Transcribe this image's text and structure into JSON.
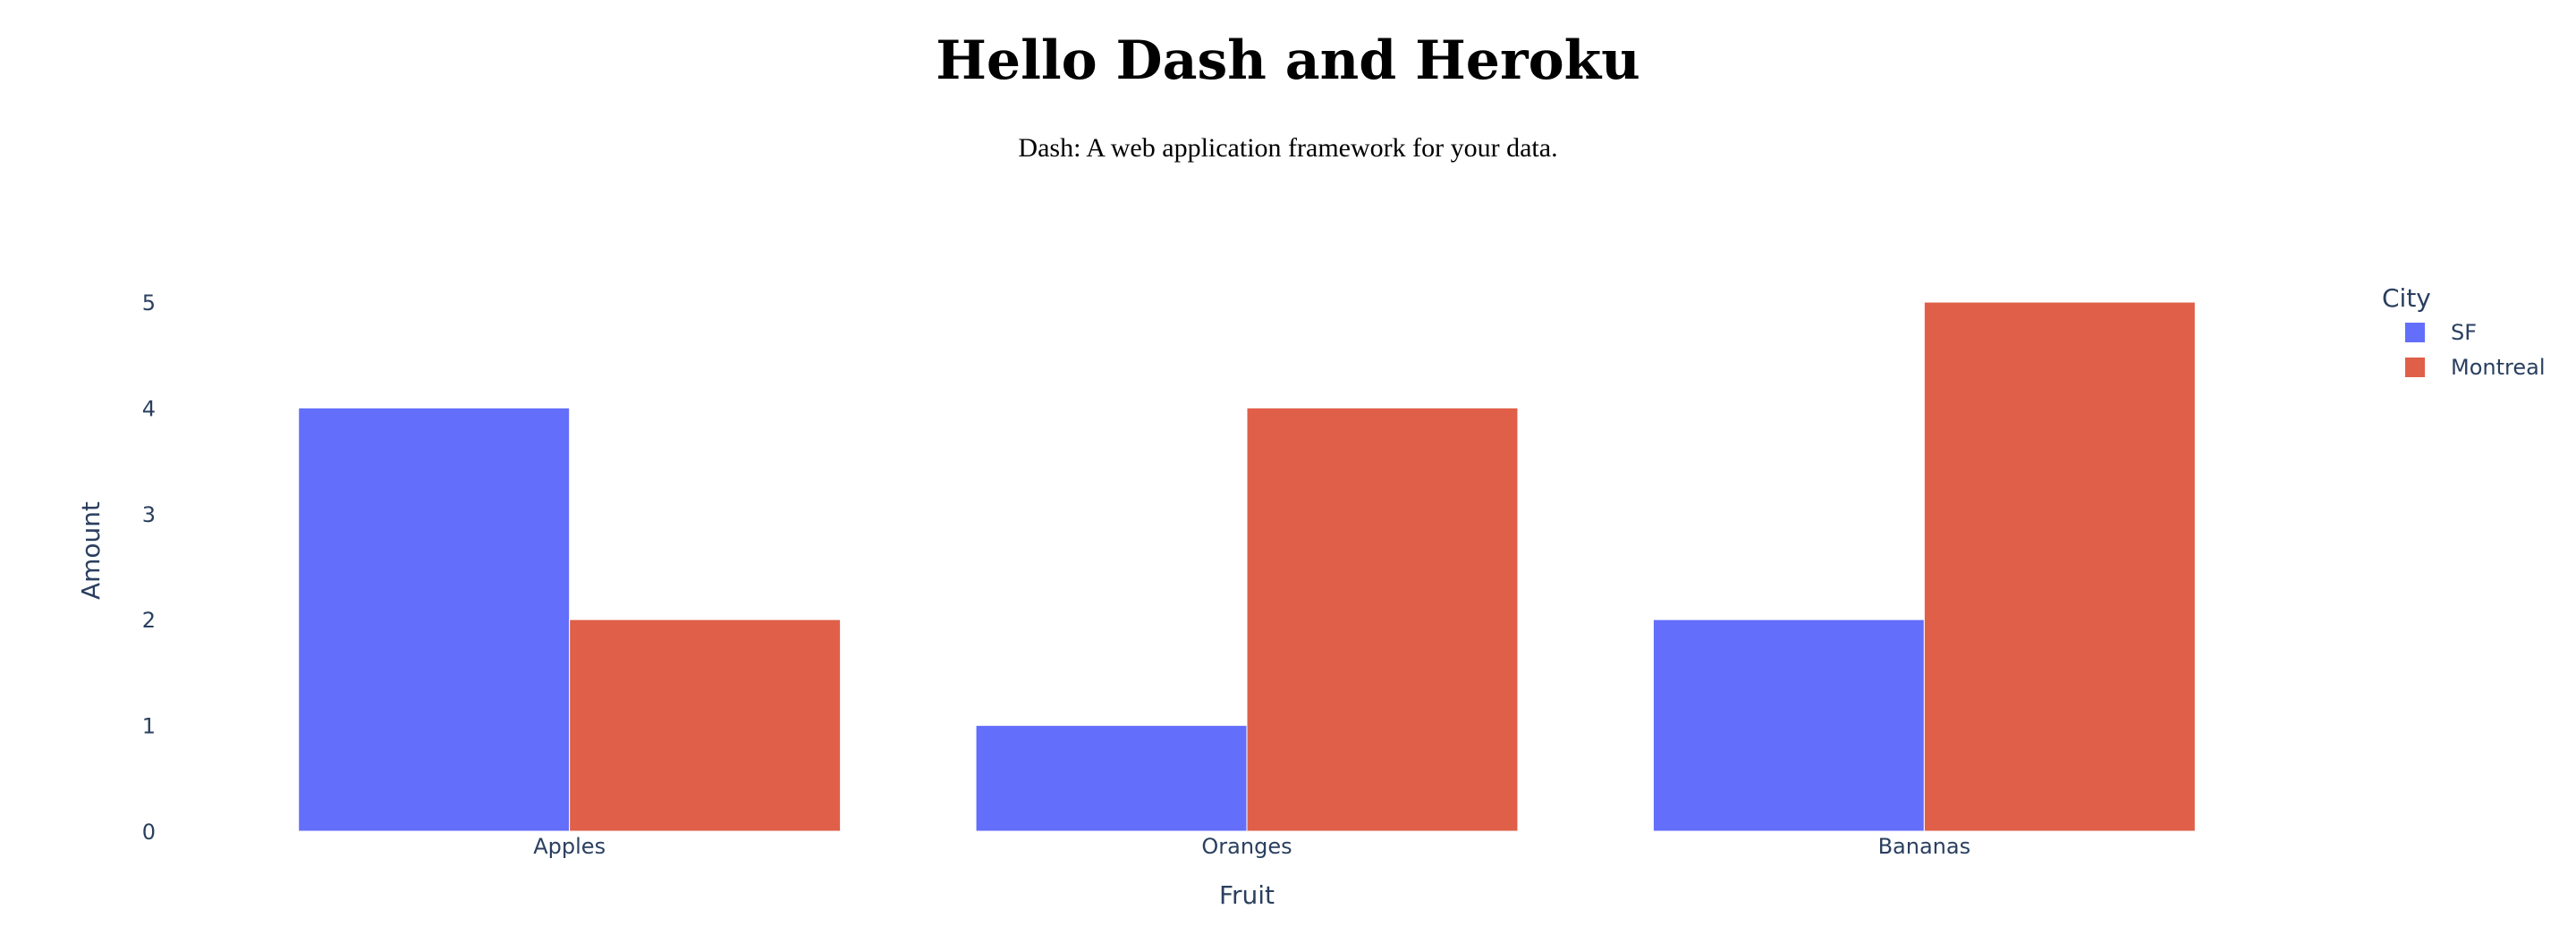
{
  "page": {
    "title": "Hello Dash and Heroku",
    "subtitle": "Dash: A web application framework for your data."
  },
  "chart_data": {
    "type": "bar",
    "categories": [
      "Apples",
      "Oranges",
      "Bananas"
    ],
    "series": [
      {
        "name": "SF",
        "values": [
          4,
          1,
          2
        ],
        "color": "#636efa"
      },
      {
        "name": "Montreal",
        "values": [
          2,
          4,
          5
        ],
        "color": "#e05f48"
      }
    ],
    "xlabel": "Fruit",
    "ylabel": "Amount",
    "ylim": [
      0,
      5
    ],
    "yticks": [
      0,
      1,
      2,
      3,
      4,
      5
    ],
    "legend": {
      "title": "City",
      "position": "top-right"
    },
    "grid": false
  }
}
